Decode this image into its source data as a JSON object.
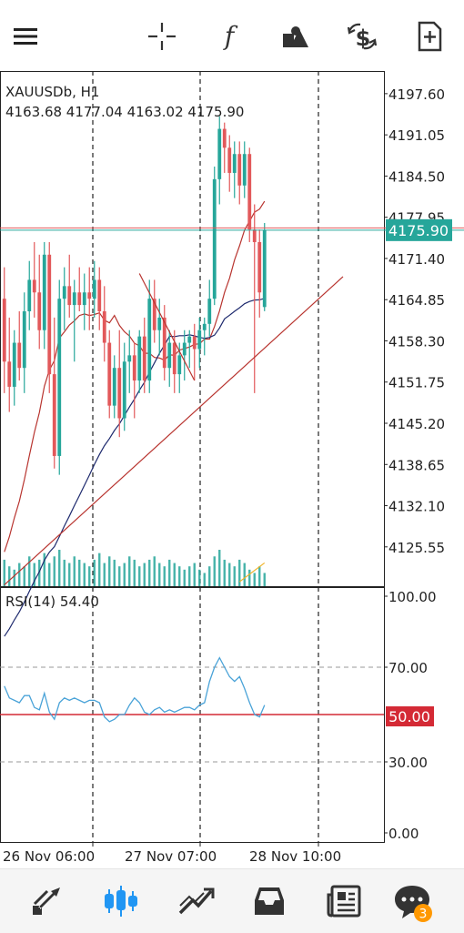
{
  "toolbar": {
    "icons": [
      "menu-icon",
      "crosshair-icon",
      "function-icon",
      "objects-icon",
      "symbol-icon",
      "new-chart-icon"
    ]
  },
  "chart_data": {
    "type": "candlestick",
    "symbol_label": "XAUUSDb, H1",
    "ohlc_label": "4163.68 4177.04 4163.02 4175.90",
    "price_axis_ticks": [
      "4197.60",
      "4191.05",
      "4184.50",
      "4177.95",
      "4171.40",
      "4164.85",
      "4158.30",
      "4151.75",
      "4145.20",
      "4138.65",
      "4132.10",
      "4125.55"
    ],
    "price_range": [
      4119.3,
      4201.2
    ],
    "current_price": 4175.9,
    "current_price_label": "4175.90",
    "time_labels": [
      "26 Nov 06:00",
      "27 Nov 07:00",
      "28 Nov 10:00"
    ],
    "candles": [
      [
        4165,
        4170,
        4150,
        4155
      ],
      [
        4155,
        4162,
        4147,
        4151
      ],
      [
        4151,
        4160,
        4148,
        4158
      ],
      [
        4158,
        4163,
        4152,
        4154
      ],
      [
        4154,
        4166,
        4150,
        4163
      ],
      [
        4163,
        4171,
        4160,
        4168
      ],
      [
        4168,
        4174,
        4162,
        4166
      ],
      [
        4166,
        4172,
        4157,
        4160
      ],
      [
        4160,
        4174,
        4157,
        4172
      ],
      [
        4172,
        4174,
        4150,
        4153
      ],
      [
        4153,
        4162,
        4138,
        4140
      ],
      [
        4140,
        4168,
        4137,
        4165
      ],
      [
        4165,
        4170,
        4160,
        4167
      ],
      [
        4167,
        4172,
        4162,
        4164
      ],
      [
        4164,
        4168,
        4155,
        4166
      ],
      [
        4166,
        4170,
        4163,
        4164
      ],
      [
        4164,
        4169,
        4160,
        4166
      ],
      [
        4166,
        4170,
        4160,
        4165
      ],
      [
        4165,
        4171,
        4162,
        4168
      ],
      [
        4168,
        4170,
        4160,
        4163
      ],
      [
        4163,
        4167,
        4155,
        4158
      ],
      [
        4158,
        4160,
        4146,
        4148
      ],
      [
        4148,
        4156,
        4146,
        4154
      ],
      [
        4154,
        4160,
        4143,
        4146
      ],
      [
        4146,
        4158,
        4144,
        4155
      ],
      [
        4155,
        4160,
        4150,
        4156
      ],
      [
        4156,
        4158,
        4146,
        4152
      ],
      [
        4152,
        4160,
        4150,
        4159
      ],
      [
        4159,
        4162,
        4150,
        4152
      ],
      [
        4152,
        4168,
        4150,
        4165
      ],
      [
        4165,
        4168,
        4158,
        4160
      ],
      [
        4160,
        4165,
        4156,
        4162
      ],
      [
        4162,
        4164,
        4152,
        4154
      ],
      [
        4154,
        4160,
        4151,
        4158
      ],
      [
        4158,
        4160,
        4150,
        4153
      ],
      [
        4153,
        4158,
        4150,
        4156
      ],
      [
        4156,
        4160,
        4152,
        4158
      ],
      [
        4158,
        4160,
        4154,
        4159
      ],
      [
        4159,
        4161,
        4152,
        4157
      ],
      [
        4157,
        4162,
        4154,
        4160
      ],
      [
        4160,
        4162,
        4156,
        4161
      ],
      [
        4161,
        4168,
        4159,
        4165
      ],
      [
        4165,
        4186,
        4164,
        4184
      ],
      [
        4184,
        4194,
        4180,
        4192
      ],
      [
        4192,
        4193,
        4185,
        4189
      ],
      [
        4189,
        4191,
        4182,
        4185
      ],
      [
        4185,
        4190,
        4181,
        4188
      ],
      [
        4188,
        4190,
        4180,
        4183
      ],
      [
        4183,
        4190,
        4181,
        4188
      ],
      [
        4188,
        4189,
        4174,
        4176
      ],
      [
        4176,
        4180,
        4150,
        4174
      ],
      [
        4174,
        4176,
        4162,
        4166
      ],
      [
        4163.68,
        4177.04,
        4163.02,
        4175.9
      ]
    ],
    "volumes": [
      8,
      6,
      5,
      7,
      6,
      9,
      7,
      8,
      10,
      7,
      9,
      11,
      8,
      7,
      9,
      8,
      7,
      6,
      8,
      10,
      7,
      9,
      8,
      6,
      7,
      9,
      8,
      6,
      7,
      8,
      9,
      7,
      6,
      8,
      7,
      6,
      5,
      6,
      7,
      5,
      4,
      6,
      9,
      11,
      8,
      7,
      6,
      8,
      7,
      5,
      4,
      6,
      4
    ],
    "rsi": {
      "label": "RSI(14) 54.40",
      "axis_ticks": [
        "100.00",
        "70.00",
        "30.00",
        "0.00"
      ],
      "level_label": "50.00",
      "values": [
        62,
        57,
        56,
        55,
        58,
        58,
        53,
        52,
        59,
        51,
        48,
        55,
        57,
        56,
        57,
        56,
        55,
        56,
        56,
        55,
        49,
        47,
        48,
        50,
        50,
        54,
        57,
        55,
        51,
        50,
        52,
        53,
        51,
        52,
        51,
        52,
        53,
        53,
        52,
        54,
        55,
        64,
        70,
        74,
        70,
        66,
        64,
        66,
        61,
        55,
        50,
        49,
        54
      ]
    }
  },
  "bottombar": {
    "icons": [
      "quotes-icon",
      "chart-icon",
      "trade-icon",
      "history-icon",
      "news-icon",
      "chat-icon"
    ],
    "chat_badge": "3"
  },
  "colors": {
    "bull": "#26a69a",
    "bear": "#e2585a",
    "grid": "#222222",
    "price_tag": "#26a69a",
    "rsi_line": "#4aa3d8",
    "rsi_level": "#d42a35",
    "ma_fast": "#b8342f",
    "ma_slow": "#1e2a6e",
    "icon": "#333333",
    "icon_active": "#2196f3",
    "badge": "#ff9800"
  }
}
